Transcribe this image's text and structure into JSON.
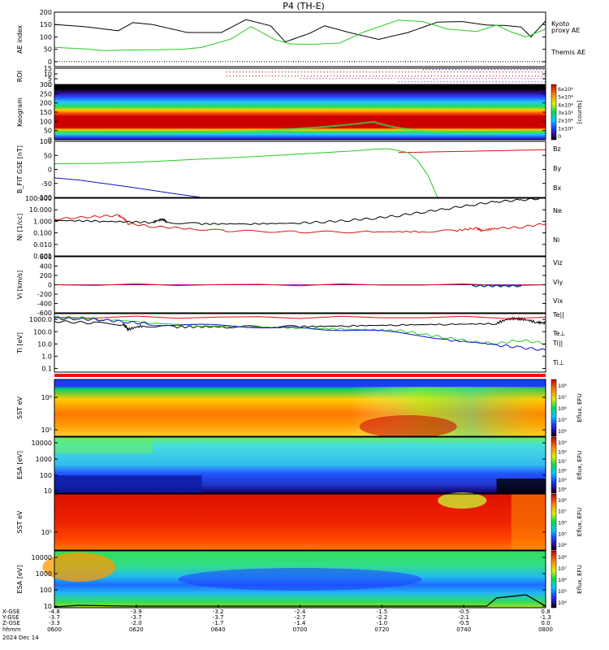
{
  "title": "P4 (TH-E)",
  "colors": {
    "green": "#22cc22",
    "red": "#dd1111",
    "blue": "#1111cc",
    "black": "#000000",
    "purple": "#8811aa"
  },
  "chart_data": [
    {
      "id": "ae",
      "type": "line",
      "ylabel": "AE index",
      "ylim": [
        -20,
        200
      ],
      "yticks": [
        "0",
        "50",
        "100",
        "150",
        "200"
      ],
      "legend": [
        "Kyoto",
        "proxy AE",
        "Themis AE"
      ],
      "series": [
        {
          "name": "Themis AE",
          "color": "black",
          "x": [
            0,
            0.06,
            0.13,
            0.16,
            0.2,
            0.27,
            0.34,
            0.39,
            0.44,
            0.47,
            0.52,
            0.55,
            0.6,
            0.66,
            0.72,
            0.78,
            0.83,
            0.88,
            0.92,
            0.95,
            0.97,
            1.0
          ],
          "values": [
            150,
            142,
            125,
            158,
            150,
            118,
            118,
            170,
            145,
            80,
            115,
            145,
            118,
            90,
            118,
            160,
            162,
            148,
            146,
            140,
            100,
            165
          ]
        },
        {
          "name": "Kyoto proxy AE",
          "color": "green",
          "x": [
            0,
            0.06,
            0.1,
            0.15,
            0.2,
            0.26,
            0.3,
            0.36,
            0.4,
            0.45,
            0.48,
            0.52,
            0.58,
            0.63,
            0.7,
            0.75,
            0.8,
            0.86,
            0.9,
            0.93,
            0.96,
            1.0
          ],
          "values": [
            58,
            52,
            45,
            47,
            48,
            50,
            58,
            92,
            142,
            88,
            72,
            70,
            75,
            120,
            168,
            162,
            132,
            122,
            148,
            120,
            100,
            132
          ]
        }
      ]
    },
    {
      "id": "roi",
      "type": "scatter",
      "ylabel": "ROI",
      "ylim": [
        0,
        15
      ],
      "yticks": [
        "0",
        "5",
        "10",
        "15"
      ]
    },
    {
      "id": "keogram",
      "type": "heatmap",
      "ylabel": "Keogram",
      "ylim": [
        0,
        300
      ],
      "yticks": [
        "0",
        "50",
        "100",
        "150",
        "200",
        "250",
        "300"
      ],
      "colorbar": {
        "unit": "[counts]",
        "ticks": [
          "0",
          "1x10⁴",
          "2x10⁴",
          "3x10⁴",
          "4x10⁴",
          "5x10⁴",
          "6x10⁴"
        ]
      }
    },
    {
      "id": "bfit",
      "type": "line",
      "ylabel": "B_FIT GSE [nT]",
      "ylim": [
        -100,
        100
      ],
      "yticks": [
        "-100",
        "-50",
        "0",
        "50",
        "100"
      ],
      "series": [
        {
          "name": "Bz",
          "color": "red",
          "x": [
            0.7,
            1.0
          ],
          "values": [
            60,
            70
          ]
        },
        {
          "name": "By",
          "color": "green",
          "x": [
            0,
            0.1,
            0.2,
            0.3,
            0.4,
            0.5,
            0.6,
            0.65,
            0.68,
            0.72,
            0.74,
            0.76,
            0.78
          ],
          "values": [
            20,
            22,
            28,
            37,
            45,
            55,
            65,
            72,
            74,
            60,
            30,
            -20,
            -100
          ]
        },
        {
          "name": "Bx",
          "color": "blue",
          "x": [
            0,
            0.05,
            0.1,
            0.15,
            0.2,
            0.25,
            0.3
          ],
          "values": [
            -30,
            -38,
            -50,
            -62,
            -75,
            -88,
            -100
          ]
        }
      ],
      "legend": [
        "Bz",
        "By",
        "Bx"
      ]
    },
    {
      "id": "density",
      "type": "line",
      "ylabel": "Ni [1/cc]",
      "scale": "log",
      "ylim": [
        0.001,
        100
      ],
      "yticks": [
        "0.001",
        "0.010",
        "0.100",
        "1.000",
        "10.000",
        "100.000"
      ],
      "series": [
        {
          "name": "Ne",
          "color": "red",
          "x": [
            0,
            0.08,
            0.13,
            0.15,
            0.2,
            0.28,
            0.35,
            0.5,
            0.65,
            0.75,
            0.82,
            0.86,
            0.87,
            0.9,
            0.95,
            1.0
          ],
          "values": [
            1.5,
            2.5,
            3.2,
            0.6,
            0.35,
            0.22,
            0.15,
            0.12,
            0.12,
            0.13,
            0.16,
            0.25,
            0.15,
            0.25,
            0.3,
            0.6
          ]
        },
        {
          "name": "Ni",
          "color": "black",
          "x": [
            0,
            0.1,
            0.2,
            0.22,
            0.23,
            0.3,
            0.4,
            0.5,
            0.55,
            0.6,
            0.65,
            0.7,
            0.75,
            0.8,
            0.85,
            0.9,
            0.95,
            1.0
          ],
          "values": [
            1.2,
            1.0,
            0.8,
            1.5,
            0.8,
            0.6,
            0.6,
            0.7,
            0.9,
            1.2,
            1.8,
            3,
            6,
            12,
            25,
            50,
            70,
            100
          ]
        }
      ],
      "legend": [
        "Ne",
        "Ni"
      ]
    },
    {
      "id": "velocity",
      "type": "line",
      "ylabel": "Vi [km/s]",
      "ylim": [
        -600,
        600
      ],
      "yticks": [
        "-600",
        "-400",
        "-200",
        "0",
        "200",
        "400",
        "600"
      ],
      "series": [
        {
          "name": "Viz",
          "color": "red",
          "x": [
            0,
            1
          ],
          "values": [
            0,
            0
          ]
        },
        {
          "name": "Viy",
          "color": "green",
          "x": [
            0.85,
            0.95
          ],
          "values": [
            -30,
            -30
          ]
        },
        {
          "name": "Vix",
          "color": "blue",
          "x": [
            0.85,
            0.95
          ],
          "values": [
            -20,
            -20
          ]
        }
      ],
      "legend": [
        "Viz",
        "Viy",
        "Vix"
      ]
    },
    {
      "id": "temp",
      "type": "line",
      "ylabel": "Ti [eV]",
      "scale": "log",
      "ylim": [
        0.05,
        3000
      ],
      "yticks": [
        "0.1",
        "1.0",
        "10.0",
        "100.0",
        "1000.0"
      ],
      "series": [
        {
          "name": "Te||",
          "color": "black",
          "x": [
            0,
            0.08,
            0.14,
            0.15,
            0.18,
            0.25,
            0.35,
            0.5,
            0.6,
            0.7,
            0.8,
            0.9,
            0.93,
            0.95,
            0.98,
            1.0
          ],
          "values": [
            700,
            500,
            400,
            150,
            300,
            250,
            250,
            260,
            300,
            350,
            400,
            450,
            1200,
            1100,
            600,
            500
          ]
        },
        {
          "name": "Te⊥",
          "color": "red",
          "x": [
            0,
            1
          ],
          "values": [
            1500,
            1500
          ]
        },
        {
          "name": "Ti||",
          "color": "green",
          "x": [
            0,
            0.05,
            0.1,
            0.2,
            0.3,
            0.4,
            0.5,
            0.6,
            0.7,
            0.75,
            0.8,
            0.85,
            0.9,
            0.95,
            1.0
          ],
          "values": [
            1500,
            1400,
            1000,
            500,
            300,
            250,
            200,
            160,
            120,
            60,
            30,
            15,
            10,
            20,
            10
          ]
        },
        {
          "name": "Ti⊥",
          "color": "blue",
          "x": [
            0,
            0.05,
            0.1,
            0.15,
            0.2,
            0.5,
            0.8,
            0.9,
            0.95,
            1.0
          ],
          "values": [
            1200,
            1100,
            900,
            600,
            400,
            200,
            20,
            8,
            5,
            3
          ]
        }
      ],
      "legend": [
        "Te||",
        "Te⊥",
        "Ti||",
        "Ti⊥"
      ]
    },
    {
      "id": "sst_e",
      "type": "heatmap",
      "ylabel": "SST eV",
      "yticks": [
        "10⁵",
        "10⁶"
      ],
      "colorbar": {
        "unit": "Eflux, EFU",
        "ticks": [
          "10⁴",
          "10⁵",
          "10⁶",
          "10⁷",
          "10⁸"
        ]
      }
    },
    {
      "id": "esa_e",
      "type": "heatmap",
      "ylabel": "ESA [eV]",
      "yticks": [
        "10",
        "100",
        "1000",
        "10000"
      ],
      "colorbar": {
        "unit": "Eflux, EFU",
        "ticks": [
          "10⁴",
          "10⁵",
          "10⁶",
          "10⁷",
          "10⁸",
          "10⁹"
        ]
      }
    },
    {
      "id": "sst_i",
      "type": "heatmap",
      "ylabel": "SST eV",
      "yticks": [
        "10⁵"
      ],
      "colorbar": {
        "unit": "Eflux, EFU",
        "ticks": [
          "10⁴",
          "10⁵",
          "10⁶",
          "10⁷",
          "10⁸"
        ]
      }
    },
    {
      "id": "esa_i",
      "type": "heatmap",
      "ylabel": "ESA [eV]",
      "yticks": [
        "10",
        "100",
        "1000",
        "10000"
      ],
      "colorbar": {
        "unit": "Eflux, EFU",
        "ticks": [
          "10⁴",
          "10⁵",
          "10⁶",
          "10⁷",
          "10⁸"
        ]
      }
    }
  ],
  "xaxis": {
    "rowlabels": [
      "X-GSE",
      "Y-GSE",
      "Z-GSE",
      "hhmm",
      "2024 Dec 14"
    ],
    "columns": [
      {
        "x": "-4.8",
        "y": "-3.7",
        "z": "-3.3",
        "t": "0600"
      },
      {
        "x": "-3.9",
        "y": "-3.7",
        "z": "-2.0",
        "t": "0620"
      },
      {
        "x": "-3.2",
        "y": "-3.7",
        "z": "-1.7",
        "t": "0640"
      },
      {
        "x": "-2.4",
        "y": "-2.7",
        "z": "-1.4",
        "t": "0700"
      },
      {
        "x": "-1.5",
        "y": "-2.2",
        "z": "-1.0",
        "t": "0720"
      },
      {
        "x": "-0.5",
        "y": "-2.1",
        "z": "-0.5",
        "t": "0740"
      },
      {
        "x": "0.8",
        "y": "-1.3",
        "z": "0.0",
        "t": "0800"
      }
    ]
  }
}
